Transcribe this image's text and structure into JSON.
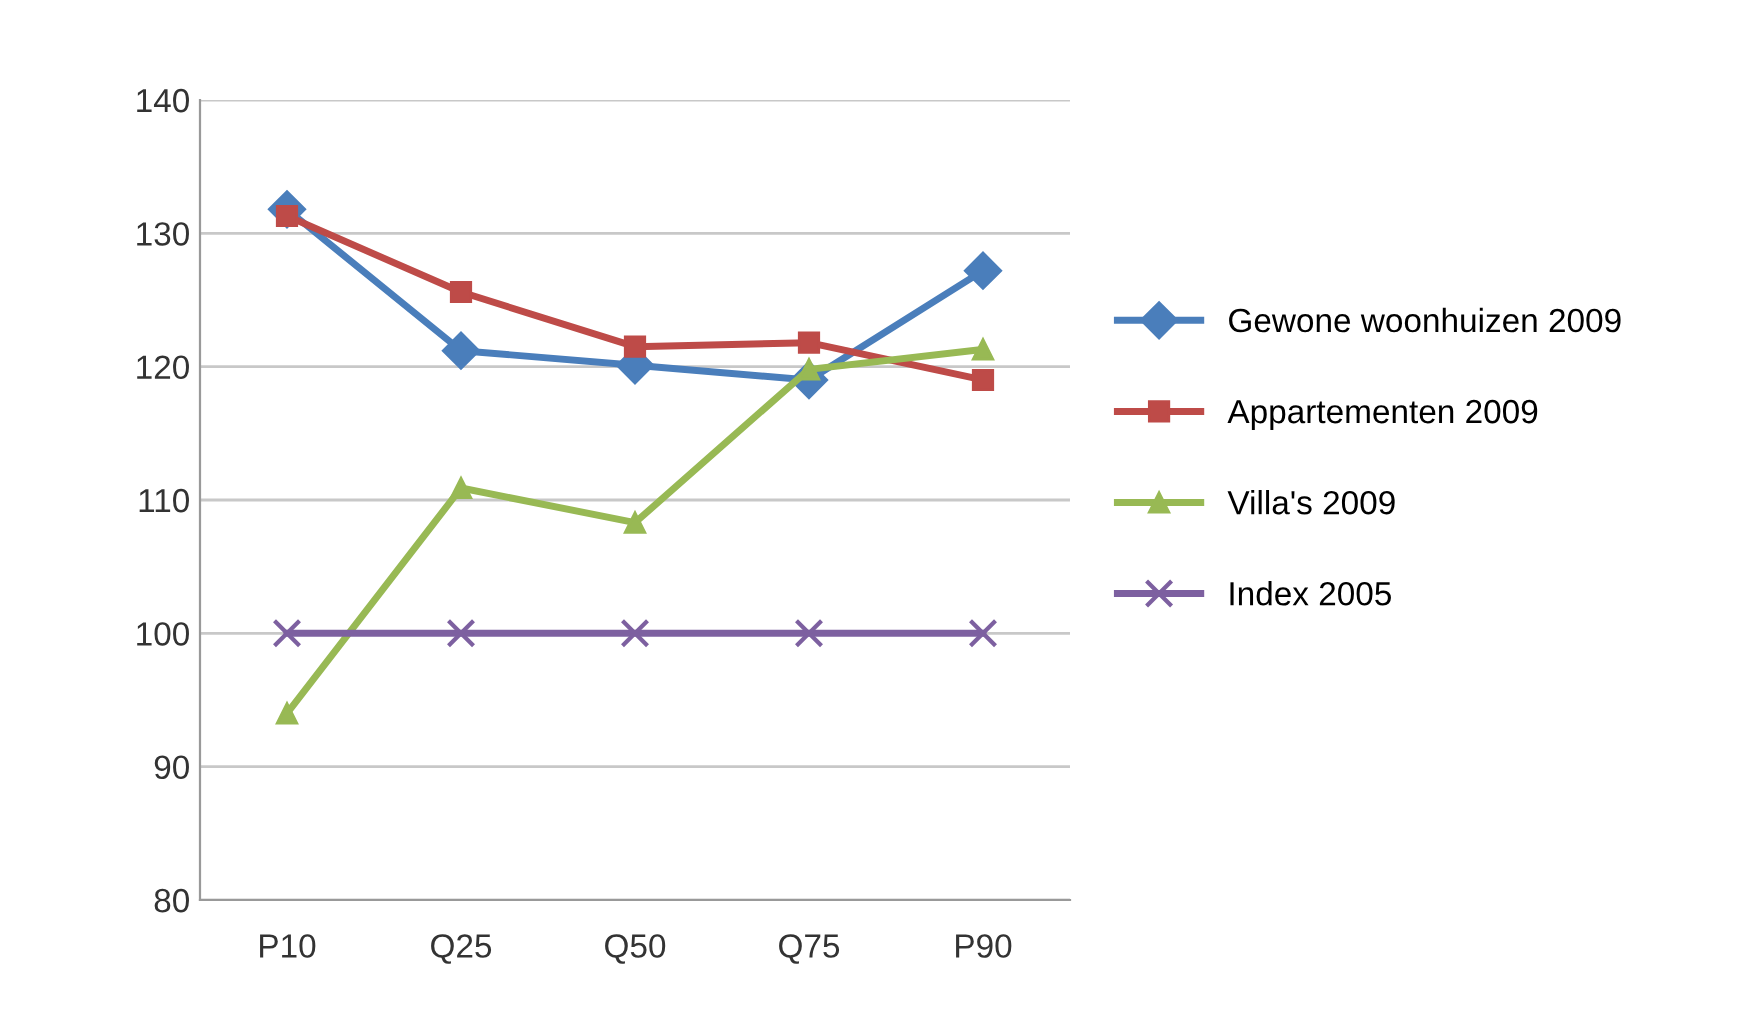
{
  "chart_data": {
    "type": "line",
    "categories": [
      "P10",
      "Q25",
      "Q50",
      "Q75",
      "P90"
    ],
    "ylim": [
      80,
      140
    ],
    "yticks": [
      80,
      90,
      100,
      110,
      120,
      130,
      140
    ],
    "grid": "y",
    "legend": "right",
    "series": [
      {
        "name": "Gewone woonhuizen 2009",
        "color": "#4a7ebb",
        "marker": "diamond",
        "values": [
          131.8,
          121.2,
          120.1,
          119.0,
          127.2
        ]
      },
      {
        "name": "Appartementen 2009",
        "color": "#be4b48",
        "marker": "square",
        "values": [
          131.3,
          125.6,
          121.5,
          121.8,
          119.0
        ]
      },
      {
        "name": "Villa's 2009",
        "color": "#98b954",
        "marker": "triangle",
        "values": [
          94.0,
          110.9,
          108.3,
          119.8,
          121.3
        ]
      },
      {
        "name": "Index 2005",
        "color": "#7d60a0",
        "marker": "cross",
        "values": [
          100,
          100,
          100,
          100,
          100
        ]
      }
    ]
  }
}
